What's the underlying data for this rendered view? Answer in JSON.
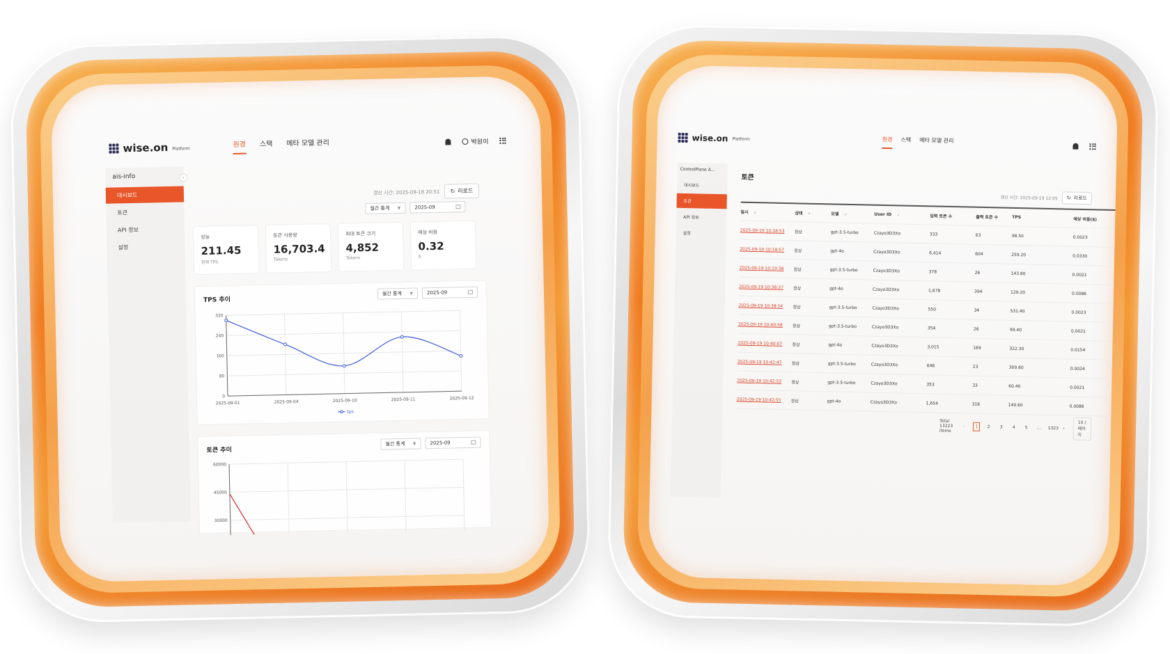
{
  "left": {
    "brand": "wise.on",
    "brand_sub": "Platform",
    "tabs": [
      {
        "label": "원경"
      },
      {
        "label": "스택"
      },
      {
        "label": "메타 모델 관리"
      }
    ],
    "user_name": "박원이",
    "sidebar": {
      "title": "ais-info",
      "items": [
        {
          "label": "대시보드"
        },
        {
          "label": "토큰"
        },
        {
          "label": "API 정보"
        },
        {
          "label": "설정"
        }
      ]
    },
    "updated": "갱신 시간: 2025-09-18 20:51",
    "reload_label": "리로드",
    "period_select": "월간 통계",
    "period_date": "2025-09",
    "cards": [
      {
        "label": "성능",
        "value": "211.45",
        "unit": "현재 TPS"
      },
      {
        "label": "토큰 사용량",
        "value": "16,703.4",
        "unit": "Tokens"
      },
      {
        "label": "최대 토큰 크기",
        "value": "4,852",
        "unit": "Tokens"
      },
      {
        "label": "예상 비용",
        "value": "0.32",
        "unit": "$"
      }
    ],
    "tps_panel": {
      "title": "TPS 추이",
      "select": "월간 통계",
      "date": "2025-09"
    },
    "token_panel": {
      "title": "토큰 추이",
      "select": "월간 통계",
      "date": "2025-09"
    }
  },
  "chart_data": [
    {
      "type": "line",
      "title": "TPS 추이",
      "x": [
        "2025-09-01",
        "2025-09-04",
        "2025-09-10",
        "2025-09-11",
        "2025-09-12"
      ],
      "series": [
        {
          "name": "tps",
          "values": [
            300,
            200,
            110,
            220,
            140
          ]
        }
      ],
      "yticks": [
        0,
        80,
        160,
        240,
        320
      ],
      "ylim": [
        0,
        320
      ],
      "grid": true,
      "legend": "bottom",
      "color": "#3b5bdb"
    },
    {
      "type": "line",
      "title": "토큰 추이",
      "yticks": [
        30000,
        45000,
        60000
      ],
      "ylim": [
        22000,
        60000
      ],
      "series": [
        {
          "values": [
            44000,
            22000
          ]
        }
      ],
      "grid": true,
      "color": "#d62828"
    }
  ],
  "right": {
    "brand": "wise.on",
    "brand_sub": "Platform",
    "tabs": [
      {
        "label": "원경"
      },
      {
        "label": "스택"
      },
      {
        "label": "메타 모델 관리"
      }
    ],
    "sidebar": {
      "title": "ControlPlane A...",
      "items": [
        {
          "label": "대시보드"
        },
        {
          "label": "토큰"
        },
        {
          "label": "API 정보"
        },
        {
          "label": "설정"
        }
      ]
    },
    "page_title": "토큰",
    "updated": "갱신 시간: 2025-09-19 12:05",
    "reload_label": "리로드",
    "columns": [
      "일시",
      "상태",
      "모델",
      "User ID",
      "입력 토큰 수",
      "출력 토큰 수",
      "TPS",
      "예상 비용($)"
    ],
    "rows": [
      [
        "2025-09-19 10:18:53",
        "정상",
        "gpt-3.5-turbo",
        "Czayo3D3Xo",
        "333",
        "63",
        "98.50",
        "0.0023"
      ],
      [
        "2025-09-19 10:18:57",
        "정상",
        "gpt-4o",
        "Czayo3D3Xo",
        "6,414",
        "604",
        "259.20",
        "0.0330"
      ],
      [
        "2025-09-19 10:19:38",
        "정상",
        "gpt-3.5-turbo",
        "Czayo3D3Xo",
        "378",
        "26",
        "143.80",
        "0.0021"
      ],
      [
        "2025-09-19 10:38:37",
        "정상",
        "gpt-4o",
        "Czayo3D3Xo",
        "1,678",
        "394",
        "129.20",
        "0.0086"
      ],
      [
        "2025-09-19 10:38:54",
        "정상",
        "gpt-3.5-turbo",
        "Czayo3D3Xo",
        "550",
        "34",
        "531.40",
        "0.0023"
      ],
      [
        "2025-09-19 10:40:58",
        "정상",
        "gpt-3.5-turbo",
        "Czayo3D3Xo",
        "354",
        "26",
        "99.40",
        "0.0021"
      ],
      [
        "2025-09-19 10:40:07",
        "정상",
        "gpt-4o",
        "Czayo3D3Xo",
        "3,015",
        "169",
        "322.30",
        "0.0154"
      ],
      [
        "2025-09-19 10:42:47",
        "정상",
        "gpt-3.5-turbo",
        "Czayo3D3Xo",
        "646",
        "23",
        "309.60",
        "0.0024"
      ],
      [
        "2025-09-19 10:42:53",
        "정상",
        "gpt-3.5-turbo",
        "Czayo3D3Xo",
        "353",
        "33",
        "60.40",
        "0.0021"
      ],
      [
        "2025-09-19 10:42:55",
        "정상",
        "gpt-4o",
        "Czayo3D3Xo",
        "1,654",
        "316",
        "149.60",
        "0.0086"
      ]
    ],
    "pagination": {
      "total": "Total 13223 items",
      "pages": [
        "1",
        "2",
        "3",
        "4",
        "5",
        "...",
        "1323"
      ],
      "prev": "‹",
      "next": "›",
      "page_size": "10 / 페이지"
    }
  },
  "colors": {
    "accent": "#e8562a",
    "ring": "#f07a1e",
    "line": "#3b5bdb",
    "token_line": "#d62828"
  }
}
